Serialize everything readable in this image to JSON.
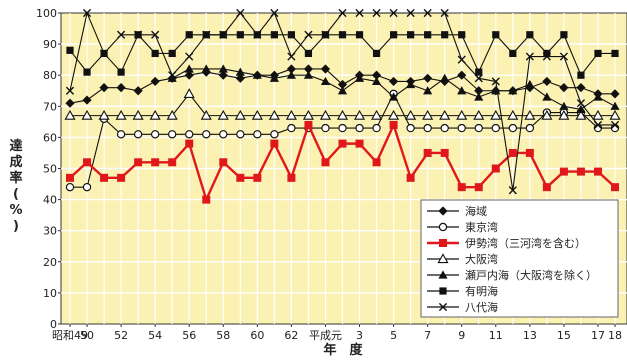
{
  "chart_data": {
    "type": "line",
    "xlabel": "年　度",
    "ylabel": "達成率(%)",
    "ylim": [
      0,
      100
    ],
    "yticks": [
      0,
      10,
      20,
      30,
      40,
      50,
      60,
      70,
      80,
      90,
      100
    ],
    "x_tick_labels": [
      "昭和49",
      "50",
      "52",
      "54",
      "56",
      "58",
      "60",
      "62",
      "平成元",
      "3",
      "5",
      "7",
      "9",
      "11",
      "13",
      "15",
      "17",
      "18"
    ],
    "x_tick_positions": [
      0,
      1,
      3,
      5,
      7,
      9,
      11,
      13,
      15,
      17,
      19,
      21,
      23,
      25,
      27,
      29,
      31,
      32
    ],
    "grid": true,
    "legend_position": "bottom-right",
    "series": [
      {
        "name": "海域",
        "marker": "diamond",
        "color": "#111111",
        "values": [
          71,
          72,
          76,
          76,
          75,
          78,
          79,
          80,
          81,
          80,
          79,
          80,
          80,
          82,
          82,
          82,
          77,
          80,
          80,
          78,
          78,
          79,
          78,
          80,
          75,
          75,
          75,
          76,
          78,
          76,
          76,
          74,
          74
        ]
      },
      {
        "name": "東京湾",
        "marker": "circle-open",
        "color": "#111111",
        "values": [
          44,
          44,
          66,
          61,
          61,
          61,
          61,
          61,
          61,
          61,
          61,
          61,
          61,
          63,
          63,
          63,
          63,
          63,
          63,
          74,
          63,
          63,
          63,
          63,
          63,
          63,
          63,
          63,
          68,
          68,
          68,
          63,
          63
        ]
      },
      {
        "name": "伊勢湾（三河湾を含む）",
        "marker": "square",
        "color": "#e0181b",
        "values": [
          47,
          52,
          47,
          47,
          52,
          52,
          52,
          58,
          40,
          52,
          47,
          47,
          58,
          47,
          64,
          52,
          58,
          58,
          52,
          64,
          47,
          55,
          55,
          44,
          44,
          50,
          55,
          55,
          44,
          49,
          49,
          49,
          44
        ]
      },
      {
        "name": "大阪湾",
        "marker": "triangle-open",
        "color": "#111111",
        "values": [
          67,
          67,
          67,
          67,
          67,
          67,
          67,
          74,
          67,
          67,
          67,
          67,
          67,
          67,
          67,
          67,
          67,
          67,
          67,
          67,
          67,
          67,
          67,
          67,
          67,
          67,
          67,
          67,
          67,
          67,
          67,
          67,
          67
        ]
      },
      {
        "name": "瀬戸内海（大阪湾を除く）",
        "marker": "triangle",
        "color": "#111111",
        "values": [
          null,
          null,
          null,
          null,
          null,
          null,
          79,
          82,
          82,
          82,
          81,
          80,
          79,
          80,
          80,
          78,
          75,
          79,
          78,
          73,
          77,
          75,
          79,
          75,
          73,
          75,
          75,
          77,
          73,
          70,
          69,
          73,
          70
        ]
      },
      {
        "name": "有明海",
        "marker": "square",
        "color": "#111111",
        "values": [
          88,
          81,
          87,
          81,
          93,
          87,
          87,
          93,
          93,
          93,
          93,
          93,
          93,
          93,
          87,
          93,
          93,
          93,
          87,
          93,
          93,
          93,
          93,
          93,
          81,
          93,
          87,
          93,
          87,
          93,
          80,
          87,
          87
        ]
      },
      {
        "name": "八代海",
        "marker": "x",
        "color": "#111111",
        "values": [
          75,
          100,
          87,
          93,
          93,
          93,
          80,
          86,
          93,
          93,
          100,
          93,
          100,
          86,
          93,
          93,
          100,
          100,
          100,
          100,
          100,
          100,
          100,
          85,
          79,
          78,
          43,
          86,
          86,
          86,
          71,
          64,
          64
        ]
      }
    ]
  }
}
